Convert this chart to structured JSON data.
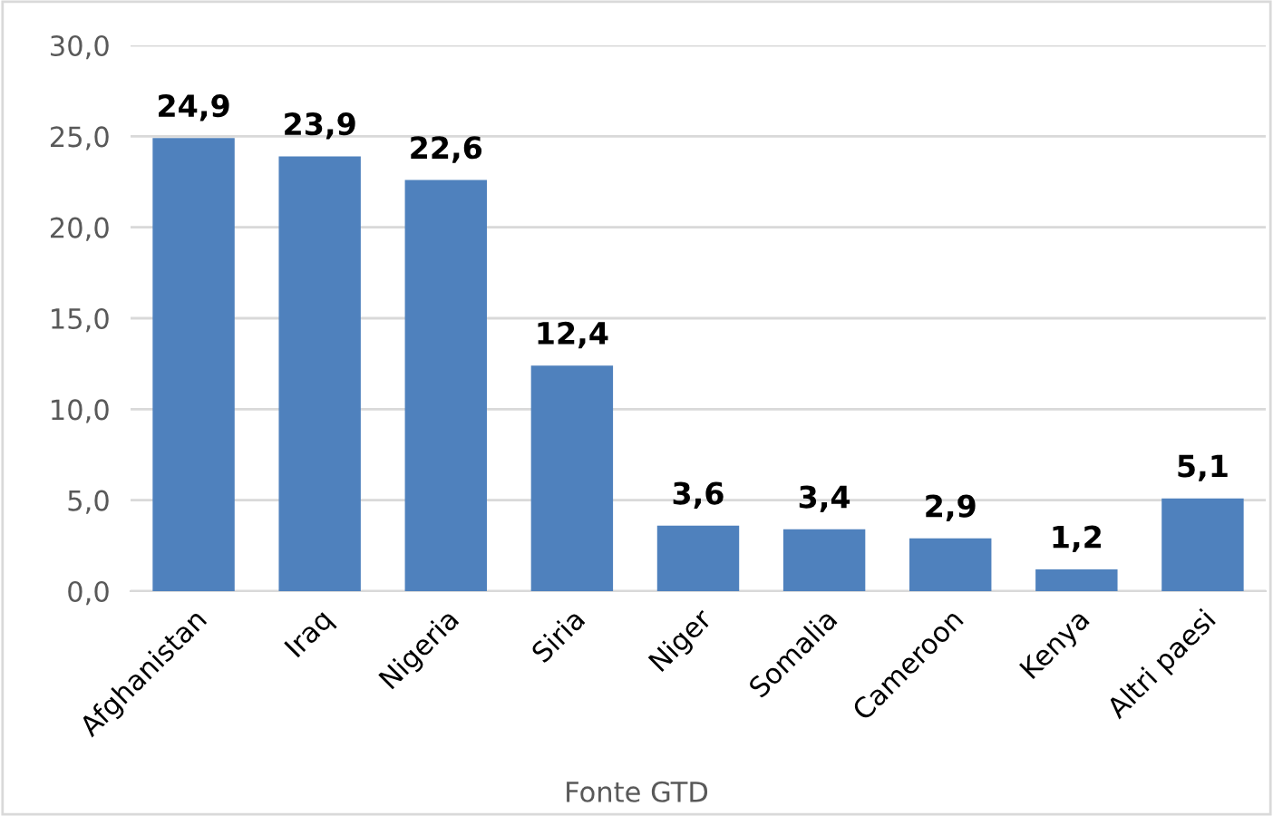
{
  "chart_data": {
    "type": "bar",
    "categories": [
      "Afghanistan",
      "Iraq",
      "Nigeria",
      "Siria",
      "Niger",
      "Somalia",
      "Cameroon",
      "Kenya",
      "Altri paesi"
    ],
    "values": [
      24.9,
      23.9,
      22.6,
      12.4,
      3.6,
      3.4,
      2.9,
      1.2,
      5.1
    ],
    "value_labels": [
      "24,9",
      "23,9",
      "22,6",
      "12,4",
      "3,6",
      "3,4",
      "2,9",
      "1,2",
      "5,1"
    ],
    "color": "#4f81bd",
    "ylim": [
      0,
      30
    ],
    "yticks": [
      {
        "value": 0,
        "label": "0,0"
      },
      {
        "value": 5,
        "label": "5,0"
      },
      {
        "value": 10,
        "label": "10,0"
      },
      {
        "value": 15,
        "label": "15,0"
      },
      {
        "value": 20,
        "label": "20,0"
      },
      {
        "value": 25,
        "label": "25,0"
      },
      {
        "value": 30,
        "label": "30,0"
      }
    ],
    "grid": "y",
    "annotations": [
      "Fonte GTD"
    ]
  }
}
